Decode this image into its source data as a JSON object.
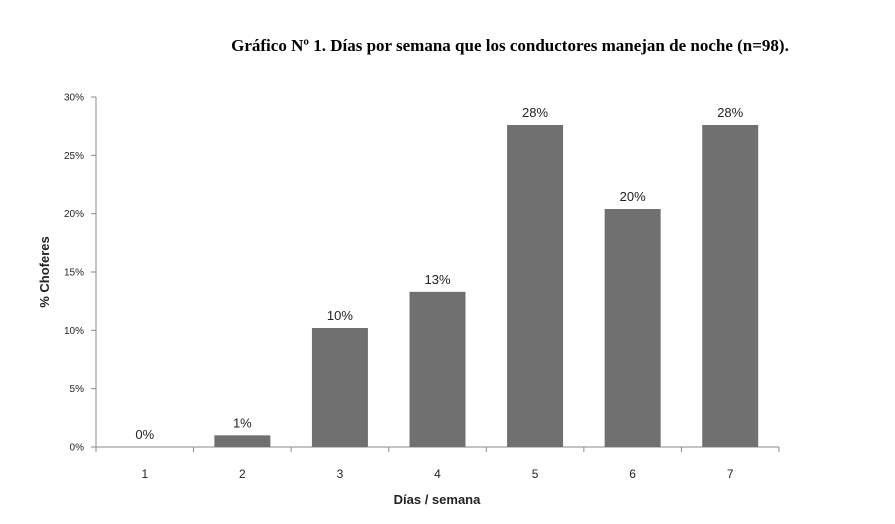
{
  "chart_data": {
    "type": "bar",
    "title": "Gráfico Nº 1. Días por semana que los conductores manejan de noche (n=98).",
    "xlabel": "Días / semana",
    "ylabel": "% Choferes",
    "categories": [
      "1",
      "2",
      "3",
      "4",
      "5",
      "6",
      "7"
    ],
    "values": [
      0,
      1,
      10.2,
      13.3,
      27.6,
      20.4,
      27.6
    ],
    "data_labels": [
      "0%",
      "1%",
      "10%",
      "13%",
      "28%",
      "20%",
      "28%"
    ],
    "ylim": [
      0,
      30
    ],
    "yticks": [
      0,
      5,
      10,
      15,
      20,
      25,
      30
    ],
    "ytick_labels": [
      "0%",
      "5%",
      "10%",
      "15%",
      "20%",
      "25%",
      "30%"
    ],
    "grid": false,
    "legend": "none",
    "bar_color": "#707070"
  }
}
